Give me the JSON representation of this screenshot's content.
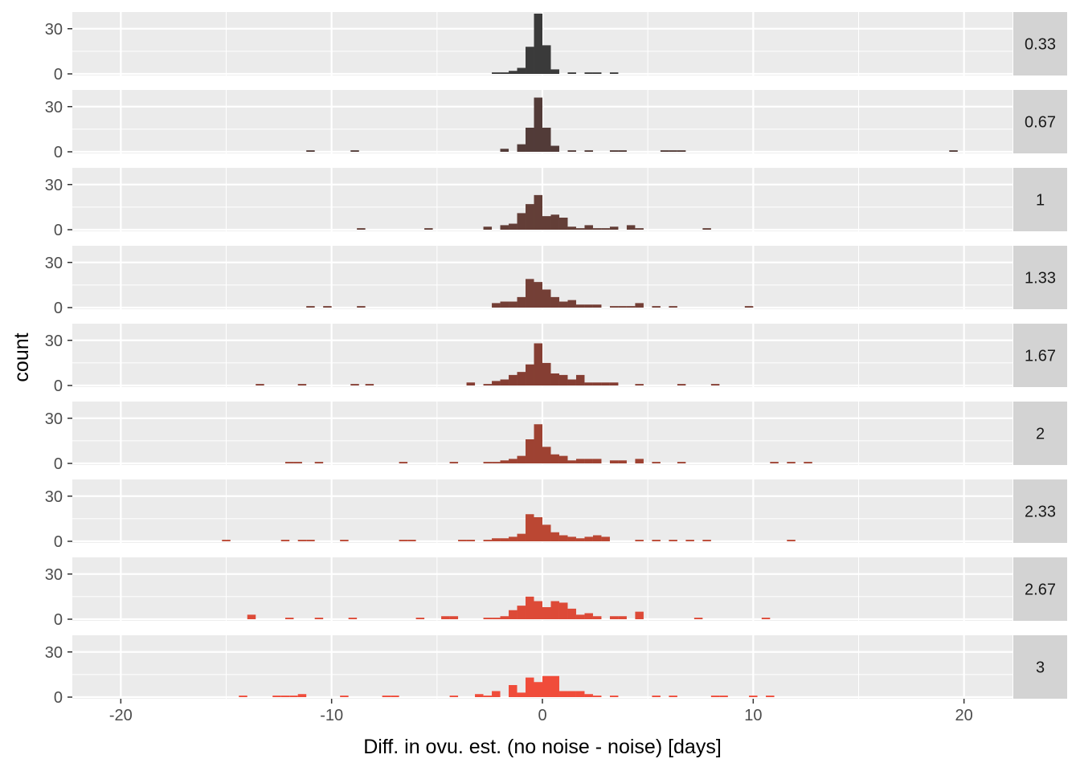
{
  "chart_data": {
    "type": "histogram",
    "xlabel": "Diff. in ovu. est. (no noise - noise) [days]",
    "ylabel": "count",
    "xlim": [
      -22.3,
      22.3
    ],
    "xticks": [
      -20,
      -10,
      0,
      10,
      20
    ],
    "xtick_labels": [
      "-20",
      "-10",
      "0",
      "10",
      "20"
    ],
    "ylim": [
      0,
      40
    ],
    "yticks": [
      0,
      30
    ],
    "ytick_labels": [
      "0",
      "30"
    ],
    "bin_width": 0.4,
    "grid": true,
    "legend": "none",
    "panels": [
      {
        "label": "0.33",
        "color": "#3a3a3a",
        "bins": [
          [
            -2.2,
            1
          ],
          [
            -1.8,
            1
          ],
          [
            -1.4,
            2
          ],
          [
            -1,
            4
          ],
          [
            -0.6,
            18
          ],
          [
            -0.2,
            40
          ],
          [
            0.2,
            19
          ],
          [
            0.6,
            3
          ],
          [
            1.4,
            1
          ],
          [
            2.2,
            1
          ],
          [
            2.6,
            1
          ],
          [
            3.4,
            1
          ]
        ]
      },
      {
        "label": "0.67",
        "color": "#523b38",
        "bins": [
          [
            -11,
            1
          ],
          [
            -8.9,
            1
          ],
          [
            -1.8,
            2
          ],
          [
            -1,
            5
          ],
          [
            -0.6,
            16
          ],
          [
            -0.2,
            36
          ],
          [
            0.2,
            16
          ],
          [
            0.6,
            4
          ],
          [
            1.4,
            1
          ],
          [
            2.2,
            1
          ],
          [
            3.4,
            1
          ],
          [
            3.8,
            1
          ],
          [
            5.8,
            1
          ],
          [
            6.2,
            1
          ],
          [
            6.6,
            1
          ],
          [
            19.5,
            1
          ]
        ]
      },
      {
        "label": "1",
        "color": "#633e37",
        "bins": [
          [
            -8.6,
            1
          ],
          [
            -5.4,
            1
          ],
          [
            -2.6,
            2
          ],
          [
            -1.8,
            3
          ],
          [
            -1.4,
            4
          ],
          [
            -1,
            11
          ],
          [
            -0.6,
            17
          ],
          [
            -0.2,
            23
          ],
          [
            0.2,
            9
          ],
          [
            0.6,
            10
          ],
          [
            1,
            8
          ],
          [
            1.4,
            2
          ],
          [
            1.8,
            1
          ],
          [
            2.2,
            3
          ],
          [
            2.6,
            1
          ],
          [
            3,
            1
          ],
          [
            3.4,
            2
          ],
          [
            4.2,
            3
          ],
          [
            4.6,
            1
          ],
          [
            7.8,
            1
          ]
        ]
      },
      {
        "label": "1.33",
        "color": "#743f36",
        "bins": [
          [
            -11,
            1
          ],
          [
            -10.2,
            1
          ],
          [
            -8.6,
            1
          ],
          [
            -2.2,
            3
          ],
          [
            -1.8,
            4
          ],
          [
            -1.4,
            4
          ],
          [
            -1,
            7
          ],
          [
            -0.6,
            19
          ],
          [
            -0.2,
            17
          ],
          [
            0.2,
            12
          ],
          [
            0.6,
            7
          ],
          [
            1,
            4
          ],
          [
            1.4,
            5
          ],
          [
            1.8,
            2
          ],
          [
            2.2,
            2
          ],
          [
            2.6,
            2
          ],
          [
            3.4,
            1
          ],
          [
            3.8,
            1
          ],
          [
            4.2,
            1
          ],
          [
            4.6,
            3
          ],
          [
            5.4,
            1
          ],
          [
            6.2,
            1
          ],
          [
            9.8,
            1
          ]
        ]
      },
      {
        "label": "1.67",
        "color": "#853e33",
        "bins": [
          [
            -13.4,
            1
          ],
          [
            -11.4,
            1
          ],
          [
            -8.9,
            1
          ],
          [
            -8.2,
            1
          ],
          [
            -3.4,
            2
          ],
          [
            -2.6,
            1
          ],
          [
            -2.2,
            3
          ],
          [
            -1.8,
            4
          ],
          [
            -1.4,
            7
          ],
          [
            -1,
            9
          ],
          [
            -0.6,
            14
          ],
          [
            -0.2,
            28
          ],
          [
            0.2,
            15
          ],
          [
            0.6,
            8
          ],
          [
            1,
            7
          ],
          [
            1.4,
            4
          ],
          [
            1.8,
            7
          ],
          [
            2.2,
            2
          ],
          [
            2.6,
            2
          ],
          [
            3,
            2
          ],
          [
            3.4,
            2
          ],
          [
            4.6,
            1
          ],
          [
            6.6,
            1
          ],
          [
            8.2,
            1
          ]
        ]
      },
      {
        "label": "2",
        "color": "#9e4232",
        "bins": [
          [
            -12,
            1
          ],
          [
            -11.6,
            1
          ],
          [
            -10.6,
            1
          ],
          [
            -6.6,
            1
          ],
          [
            -4.2,
            1
          ],
          [
            -2.6,
            1
          ],
          [
            -2.2,
            1
          ],
          [
            -1.8,
            2
          ],
          [
            -1.4,
            3
          ],
          [
            -1,
            5
          ],
          [
            -0.6,
            16
          ],
          [
            -0.2,
            26
          ],
          [
            0.2,
            11
          ],
          [
            0.6,
            6
          ],
          [
            1,
            5
          ],
          [
            1.4,
            2
          ],
          [
            1.8,
            3
          ],
          [
            2.2,
            3
          ],
          [
            2.6,
            3
          ],
          [
            3.4,
            2
          ],
          [
            3.8,
            2
          ],
          [
            4.6,
            3
          ],
          [
            5.4,
            1
          ],
          [
            6.6,
            1
          ],
          [
            11,
            1
          ],
          [
            11.8,
            1
          ],
          [
            12.6,
            1
          ]
        ]
      },
      {
        "label": "2.33",
        "color": "#bb4733",
        "bins": [
          [
            -15,
            1
          ],
          [
            -12.2,
            1
          ],
          [
            -11.4,
            1
          ],
          [
            -11,
            1
          ],
          [
            -9.4,
            1
          ],
          [
            -6.6,
            1
          ],
          [
            -6.2,
            1
          ],
          [
            -3.8,
            1
          ],
          [
            -3.4,
            1
          ],
          [
            -2.6,
            1
          ],
          [
            -2.2,
            2
          ],
          [
            -1.8,
            2
          ],
          [
            -1.4,
            3
          ],
          [
            -1,
            5
          ],
          [
            -0.6,
            18
          ],
          [
            -0.2,
            16
          ],
          [
            0.2,
            11
          ],
          [
            0.6,
            6
          ],
          [
            1,
            4
          ],
          [
            1.4,
            3
          ],
          [
            1.8,
            2
          ],
          [
            2.2,
            3
          ],
          [
            2.6,
            4
          ],
          [
            3,
            3
          ],
          [
            4.6,
            1
          ],
          [
            5.4,
            1
          ],
          [
            6.2,
            1
          ],
          [
            7,
            1
          ],
          [
            7.8,
            1
          ],
          [
            11.8,
            1
          ]
        ]
      },
      {
        "label": "2.67",
        "color": "#dd4a37",
        "bins": [
          [
            -13.8,
            3
          ],
          [
            -12,
            1
          ],
          [
            -10.6,
            1
          ],
          [
            -9,
            1
          ],
          [
            -5.8,
            1
          ],
          [
            -4.6,
            2
          ],
          [
            -4.2,
            2
          ],
          [
            -2.6,
            1
          ],
          [
            -2.2,
            1
          ],
          [
            -1.8,
            2
          ],
          [
            -1.4,
            6
          ],
          [
            -1,
            9
          ],
          [
            -0.6,
            15
          ],
          [
            -0.2,
            12
          ],
          [
            0.2,
            8
          ],
          [
            0.6,
            12
          ],
          [
            1,
            11
          ],
          [
            1.4,
            7
          ],
          [
            1.8,
            3
          ],
          [
            2.2,
            4
          ],
          [
            2.6,
            2
          ],
          [
            3.4,
            2
          ],
          [
            3.8,
            2
          ],
          [
            4.6,
            5
          ],
          [
            7.4,
            1
          ],
          [
            10.6,
            1
          ]
        ]
      },
      {
        "label": "3",
        "color": "#f04c3a",
        "bins": [
          [
            -14.2,
            1
          ],
          [
            -12.6,
            1
          ],
          [
            -12.2,
            1
          ],
          [
            -11.8,
            1
          ],
          [
            -11.4,
            2
          ],
          [
            -9.4,
            1
          ],
          [
            -7.4,
            1
          ],
          [
            -7,
            1
          ],
          [
            -4.2,
            1
          ],
          [
            -3,
            2
          ],
          [
            -2.6,
            1
          ],
          [
            -2.2,
            4
          ],
          [
            -1.4,
            8
          ],
          [
            -1,
            3
          ],
          [
            -0.6,
            13
          ],
          [
            -0.2,
            10
          ],
          [
            0.2,
            14
          ],
          [
            0.6,
            14
          ],
          [
            1,
            4
          ],
          [
            1.4,
            4
          ],
          [
            1.8,
            4
          ],
          [
            2.2,
            2
          ],
          [
            2.6,
            1
          ],
          [
            3.4,
            1
          ],
          [
            5.4,
            1
          ],
          [
            6.2,
            1
          ],
          [
            8.2,
            1
          ],
          [
            8.6,
            1
          ],
          [
            10,
            1
          ],
          [
            10.8,
            1
          ]
        ]
      }
    ]
  }
}
